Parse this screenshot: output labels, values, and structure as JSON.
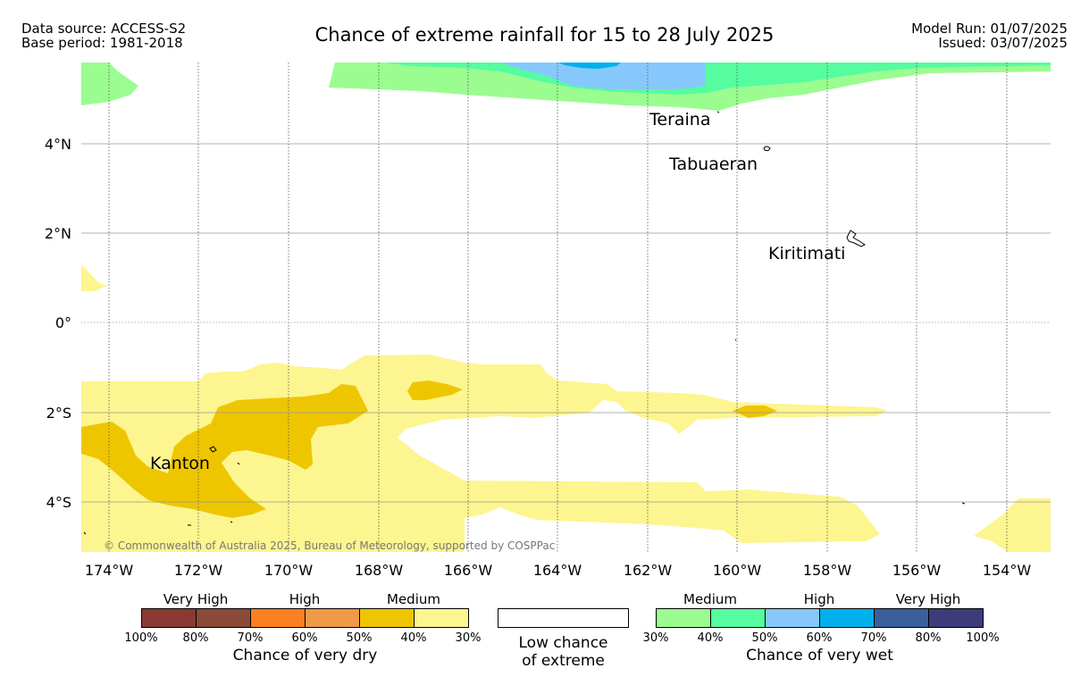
{
  "header": {
    "data_source": "Data source: ACCESS-S2",
    "base_period": "Base period: 1981-2018",
    "title": "Chance of extreme rainfall for 15 to 28 July 2025",
    "model_run": "Model Run: 01/07/2025",
    "issued": "Issued: 03/07/2025"
  },
  "map": {
    "lon_labels": [
      "174°W",
      "172°W",
      "170°W",
      "168°W",
      "166°W",
      "164°W",
      "162°W",
      "160°W",
      "158°W",
      "156°W",
      "154°W"
    ],
    "lat_labels": [
      "4°N",
      "2°N",
      "0°",
      "2°S",
      "4°S"
    ],
    "places": [
      {
        "name": "Teraina"
      },
      {
        "name": "Tabuaeran"
      },
      {
        "name": "Kiritimati"
      },
      {
        "name": "Kanton"
      }
    ],
    "copyright": "© Commonwealth of Australia 2025, Bureau of Meteorology, supported by COSPPac"
  },
  "legend": {
    "dry": {
      "category_labels": [
        "Very High",
        "High",
        "Medium"
      ],
      "colors": [
        "#8a3a32",
        "#8b4a3a",
        "#fc7f22",
        "#ee9a49",
        "#eec600",
        "#fdf58f"
      ],
      "ticks": [
        "100%",
        "80%",
        "70%",
        "60%",
        "50%",
        "40%",
        "30%"
      ],
      "caption": "Chance of very dry"
    },
    "low": {
      "caption_line1": "Low chance",
      "caption_line2": "of extreme"
    },
    "wet": {
      "category_labels": [
        "Medium",
        "High",
        "Very High"
      ],
      "colors": [
        "#9bfc90",
        "#55fca0",
        "#86c8fc",
        "#00b0ec",
        "#3a5f9c",
        "#3e3b7a"
      ],
      "ticks": [
        "30%",
        "40%",
        "50%",
        "60%",
        "70%",
        "80%",
        "100%"
      ],
      "caption": "Chance of very wet"
    }
  }
}
